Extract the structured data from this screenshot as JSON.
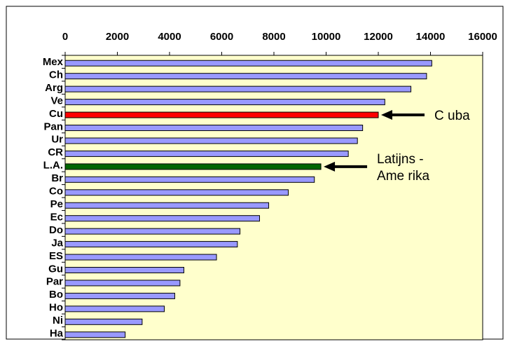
{
  "chart_data": {
    "type": "bar",
    "orientation": "horizontal",
    "title": "",
    "xlabel": "",
    "ylabel": "",
    "xlim": [
      0,
      16000
    ],
    "x_ticks": [
      0,
      2000,
      4000,
      6000,
      8000,
      10000,
      12000,
      14000,
      16000
    ],
    "x_axis_position": "top",
    "grid": false,
    "categories": [
      "Mex",
      "Ch",
      "Arg",
      "Ve",
      "Cu",
      "Pan",
      "Ur",
      "CR",
      "L.A.",
      "Br",
      "Co",
      "Pe",
      "Ec",
      "Do",
      "Ja",
      "ES",
      "Gu",
      "Par",
      "Bo",
      "Ho",
      "Ni",
      "Ha"
    ],
    "values": [
      14050,
      13850,
      13250,
      12250,
      12000,
      11400,
      11200,
      10850,
      9800,
      9550,
      8550,
      7800,
      7450,
      6700,
      6600,
      5800,
      4550,
      4400,
      4200,
      3800,
      2950,
      2300
    ],
    "colors": {
      "default": "#9999ff",
      "highlight_cuba": "#ff0000",
      "highlight_latin_america": "#006600",
      "plot_background": "#ffffcc",
      "bar_outline": "#000000"
    },
    "highlights": {
      "Cu": "highlight_cuba",
      "L.A.": "highlight_latin_america"
    },
    "annotations": [
      {
        "target": "Cu",
        "lines": [
          "C uba"
        ]
      },
      {
        "target": "L.A.",
        "lines": [
          "Latijns -",
          "Ame rika"
        ]
      }
    ]
  }
}
